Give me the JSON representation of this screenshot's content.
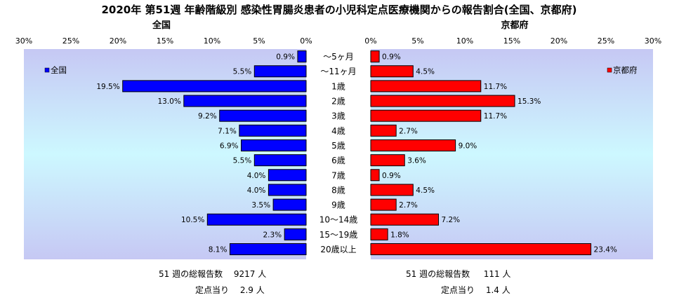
{
  "chart_data": {
    "type": "bar",
    "title": "2020年 第51週 年齢階級別 感染性胃腸炎患者の小児科定点医療機関からの報告割合(全国、京都府)",
    "categories": [
      "～5ヶ月",
      "～11ヶ月",
      "1歳",
      "2歳",
      "3歳",
      "4歳",
      "5歳",
      "6歳",
      "7歳",
      "8歳",
      "9歳",
      "10～14歳",
      "15～19歳",
      "20歳以上"
    ],
    "series": [
      {
        "name": "全国",
        "values": [
          0.9,
          5.5,
          19.5,
          13.0,
          9.2,
          7.1,
          6.9,
          5.5,
          4.0,
          4.0,
          3.5,
          10.5,
          2.3,
          8.1
        ],
        "color": "#0000ff"
      },
      {
        "name": "京都府",
        "values": [
          0.9,
          4.5,
          11.7,
          15.3,
          11.7,
          2.7,
          9.0,
          3.6,
          0.9,
          4.5,
          2.7,
          7.2,
          1.8,
          23.4
        ],
        "color": "#ff0000"
      }
    ],
    "left_panel_title": "全国",
    "right_panel_title": "京都府",
    "xlim": [
      0,
      30
    ],
    "ticks": [
      "0%",
      "5%",
      "10%",
      "15%",
      "20%",
      "25%",
      "30%"
    ],
    "tick_values": [
      0,
      5,
      10,
      15,
      20,
      25,
      30
    ],
    "value_labels_left": [
      "0.9%",
      "5.5%",
      "19.5%",
      "13.0%",
      "9.2%",
      "7.1%",
      "6.9%",
      "5.5%",
      "4.0%",
      "4.0%",
      "3.5%",
      "10.5%",
      "2.3%",
      "8.1%"
    ],
    "value_labels_right": [
      "0.9%",
      "4.5%",
      "11.7%",
      "15.3%",
      "11.7%",
      "2.7%",
      "9.0%",
      "3.6%",
      "0.9%",
      "4.5%",
      "2.7%",
      "7.2%",
      "1.8%",
      "23.4%"
    ],
    "legend_left": "全国",
    "legend_right": "京都府",
    "legend_placement": "top-left / top-right inside panels",
    "grid": false
  },
  "footer": {
    "left_line1": "51 週の総報告数　 9217 人",
    "left_line2": "定点当り　 2.9 人",
    "right_line1": "51 週の総報告数　  111 人",
    "right_line2": "定点当り　 1.4 人"
  }
}
